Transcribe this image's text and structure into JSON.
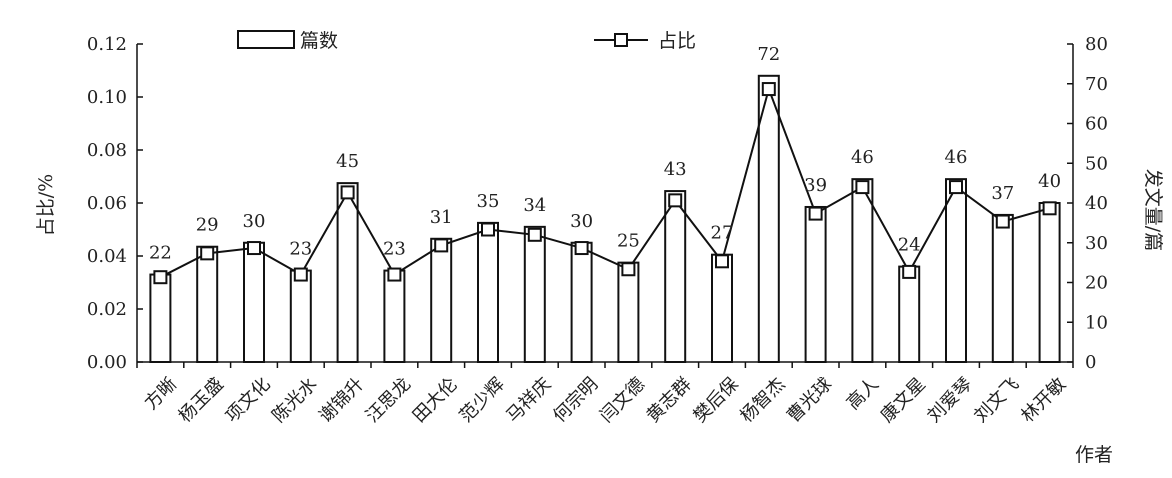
{
  "chart_data": {
    "type": "bar",
    "xlabel": "作者",
    "ylabel_left": "占比/%",
    "ylabel_right": "发文量/篇",
    "left_ylim": [
      0,
      0.12
    ],
    "left_ticks": [
      "0.00",
      "0.02",
      "0.04",
      "0.06",
      "0.08",
      "0.10",
      "0.12"
    ],
    "right_ylim": [
      0,
      80
    ],
    "right_ticks": [
      "0",
      "10",
      "20",
      "30",
      "40",
      "50",
      "60",
      "70",
      "80"
    ],
    "legend": {
      "placement": "top",
      "entries": [
        "篇数",
        "占比"
      ]
    },
    "grid": false,
    "categories": [
      "方晰",
      "杨玉盛",
      "项文化",
      "陈光水",
      "谢锦升",
      "汪思龙",
      "田大伦",
      "范少辉",
      "马祥庆",
      "何宗明",
      "闫文德",
      "黄志群",
      "樊后保",
      "杨智杰",
      "曹光球",
      "高人",
      "康文星",
      "刘爱琴",
      "刘文飞",
      "林开敏"
    ],
    "series": [
      {
        "name": "篇数",
        "type": "bar",
        "axis": "right",
        "values": [
          22,
          29,
          30,
          23,
          45,
          23,
          31,
          35,
          34,
          30,
          25,
          43,
          27,
          72,
          39,
          46,
          24,
          46,
          37,
          40
        ]
      },
      {
        "name": "占比",
        "type": "line",
        "axis": "left",
        "values": [
          0.032,
          0.041,
          0.043,
          0.033,
          0.064,
          0.033,
          0.044,
          0.05,
          0.048,
          0.043,
          0.035,
          0.061,
          0.038,
          0.103,
          0.056,
          0.066,
          0.034,
          0.066,
          0.053,
          0.058
        ]
      }
    ]
  }
}
